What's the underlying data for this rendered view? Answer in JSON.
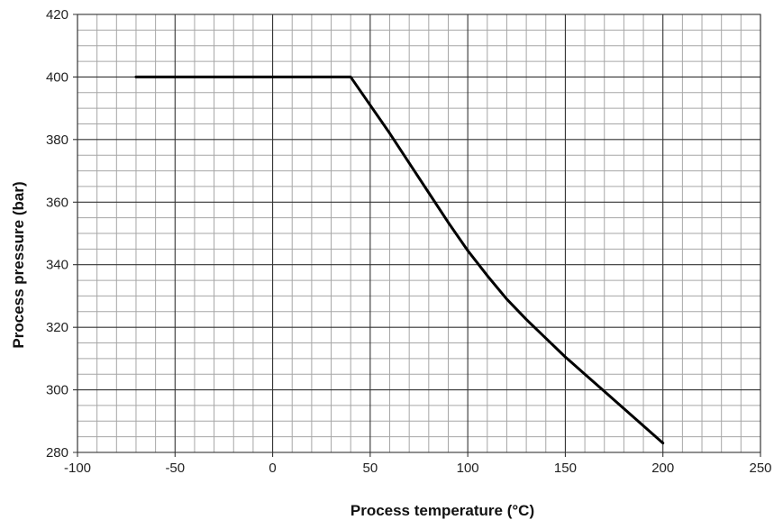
{
  "chart_data": {
    "type": "line",
    "xlabel": "Process temperature (°C)",
    "ylabel": "Process pressure (bar)",
    "xlim": [
      -100,
      250
    ],
    "ylim": [
      280,
      420
    ],
    "x_ticks": [
      -100,
      -50,
      0,
      50,
      100,
      150,
      200,
      250
    ],
    "y_ticks": [
      280,
      300,
      320,
      340,
      360,
      380,
      400,
      420
    ],
    "x_minor_step": 10,
    "y_minor_step": 5,
    "grid": true,
    "series": [
      {
        "color": "#000000",
        "points": [
          [
            -70,
            400
          ],
          [
            40,
            400
          ],
          [
            50,
            391
          ],
          [
            60,
            382
          ],
          [
            70,
            372.5
          ],
          [
            80,
            363
          ],
          [
            90,
            353.5
          ],
          [
            100,
            344.5
          ],
          [
            110,
            336.5
          ],
          [
            120,
            329
          ],
          [
            130,
            322.5
          ],
          [
            140,
            316.5
          ],
          [
            150,
            310.5
          ],
          [
            160,
            305
          ],
          [
            170,
            299.5
          ],
          [
            180,
            294
          ],
          [
            190,
            288.5
          ],
          [
            200,
            283
          ]
        ]
      }
    ]
  }
}
